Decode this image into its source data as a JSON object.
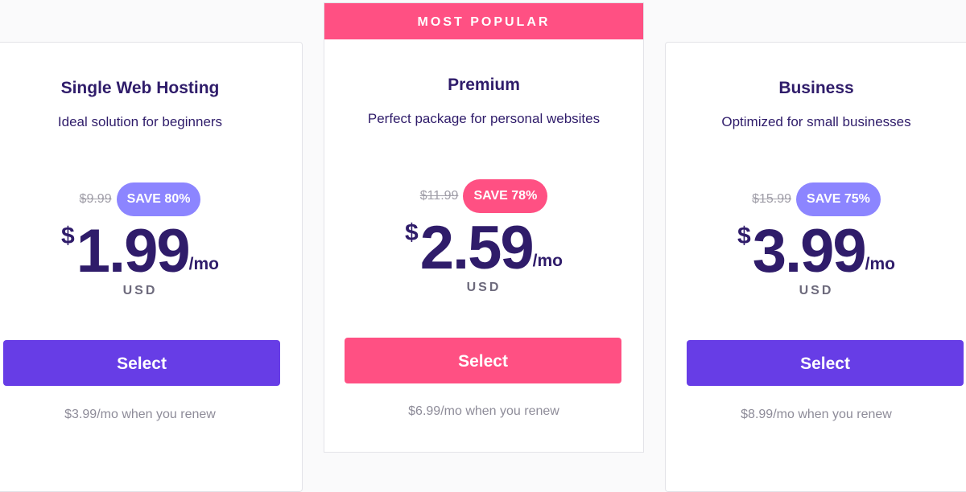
{
  "colors": {
    "purple": "#673de6",
    "pink": "#ff5083",
    "badge_purple": "#8c85ff",
    "text": "#2f1c6a"
  },
  "plans": [
    {
      "name": "Single Web Hosting",
      "desc": "Ideal solution for beginners",
      "old_price": "$9.99",
      "save": "SAVE 80%",
      "currency_symbol": "$",
      "price": "1.99",
      "period": "/mo",
      "currency": "USD",
      "button": "Select",
      "renew": "$3.99/mo when you renew"
    },
    {
      "banner": "MOST POPULAR",
      "name": "Premium",
      "desc": "Perfect package for personal websites",
      "old_price": "$11.99",
      "save": "SAVE 78%",
      "currency_symbol": "$",
      "price": "2.59",
      "period": "/mo",
      "currency": "USD",
      "button": "Select",
      "renew": "$6.99/mo when you renew"
    },
    {
      "name": "Business",
      "desc": "Optimized for small businesses",
      "old_price": "$15.99",
      "save": "SAVE 75%",
      "currency_symbol": "$",
      "price": "3.99",
      "period": "/mo",
      "currency": "USD",
      "button": "Select",
      "renew": "$8.99/mo when you renew"
    }
  ]
}
